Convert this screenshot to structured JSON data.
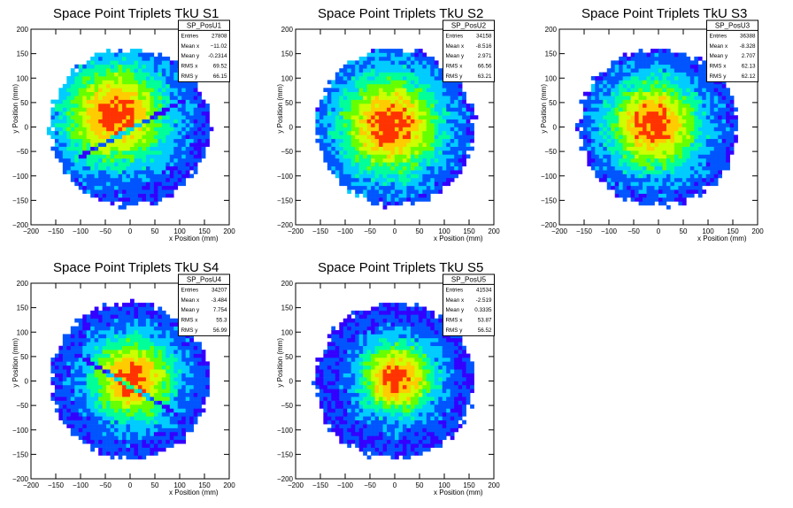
{
  "chart_data": [
    {
      "type": "heatmap",
      "title": "Space Point Triplets TkU S1",
      "xlabel": "x Position (mm)",
      "ylabel": "y Position (mm)",
      "xlim": [
        -200,
        200
      ],
      "ylim": [
        -200,
        200
      ],
      "xticks": [
        -200,
        -150,
        -100,
        -50,
        0,
        50,
        100,
        150,
        200
      ],
      "yticks": [
        -200,
        -150,
        -100,
        -50,
        0,
        50,
        100,
        150,
        200
      ],
      "stats": {
        "name": "SP_PosU1",
        "rows": [
          {
            "label": "Entries",
            "value": "27808"
          },
          {
            "label": "Mean x",
            "value": "−11.02"
          },
          {
            "label": "Mean y",
            "value": "-0.2314"
          },
          {
            "label": "RMS x",
            "value": "69.52"
          },
          {
            "label": "RMS y",
            "value": "66.15"
          }
        ]
      },
      "distribution": {
        "center": [
          -30,
          25
        ],
        "core_sigma": 55,
        "radius": 160,
        "gap_line": true,
        "gap_slope": 0.55,
        "gap_intercept": -5
      }
    },
    {
      "type": "heatmap",
      "title": "Space Point Triplets TkU S2",
      "xlabel": "x Position (mm)",
      "ylabel": "y Position (mm)",
      "xlim": [
        -200,
        200
      ],
      "ylim": [
        -200,
        200
      ],
      "xticks": [
        -200,
        -150,
        -100,
        -50,
        0,
        50,
        100,
        150,
        200
      ],
      "yticks": [
        -200,
        -150,
        -100,
        -50,
        0,
        50,
        100,
        150,
        200
      ],
      "stats": {
        "name": "SP_PosU2",
        "rows": [
          {
            "label": "Entries",
            "value": "34158"
          },
          {
            "label": "Mean x",
            "value": "-8.516"
          },
          {
            "label": "Mean y",
            "value": "2.971"
          },
          {
            "label": "RMS x",
            "value": "66.56"
          },
          {
            "label": "RMS y",
            "value": "63.21"
          }
        ]
      },
      "distribution": {
        "center": [
          -10,
          5
        ],
        "core_sigma": 55,
        "radius": 160,
        "gap_line": false
      }
    },
    {
      "type": "heatmap",
      "title": "Space Point Triplets TkU S3",
      "xlabel": "x Position (mm)",
      "ylabel": "y Position (mm)",
      "xlim": [
        -200,
        200
      ],
      "ylim": [
        -200,
        200
      ],
      "xticks": [
        -200,
        -150,
        -100,
        -50,
        0,
        50,
        100,
        150,
        200
      ],
      "yticks": [
        -200,
        -150,
        -100,
        -50,
        0,
        50,
        100,
        150,
        200
      ],
      "stats": {
        "name": "SP_PosU3",
        "rows": [
          {
            "label": "Entries",
            "value": "36388"
          },
          {
            "label": "Mean x",
            "value": "-8.328"
          },
          {
            "label": "Mean y",
            "value": "2.707"
          },
          {
            "label": "RMS x",
            "value": "62.13"
          },
          {
            "label": "RMS y",
            "value": "62.12"
          }
        ]
      },
      "distribution": {
        "center": [
          -10,
          5
        ],
        "core_sigma": 50,
        "radius": 160,
        "gap_line": false
      }
    },
    {
      "type": "heatmap",
      "title": "Space Point Triplets TkU S4",
      "xlabel": "x Position (mm)",
      "ylabel": "y Position (mm)",
      "xlim": [
        -200,
        200
      ],
      "ylim": [
        -200,
        200
      ],
      "xticks": [
        -200,
        -150,
        -100,
        -50,
        0,
        50,
        100,
        150,
        200
      ],
      "yticks": [
        -200,
        -150,
        -100,
        -50,
        0,
        50,
        100,
        150,
        200
      ],
      "stats": {
        "name": "SP_PosU4",
        "rows": [
          {
            "label": "Entries",
            "value": "34207"
          },
          {
            "label": "Mean x",
            "value": "-3.484"
          },
          {
            "label": "Mean y",
            "value": "7.754"
          },
          {
            "label": "RMS x",
            "value": "55.3"
          },
          {
            "label": "RMS y",
            "value": "56.99"
          }
        ]
      },
      "distribution": {
        "center": [
          5,
          5
        ],
        "core_sigma": 45,
        "radius": 160,
        "gap_line": true,
        "gap_slope": -0.6,
        "gap_intercept": -10
      }
    },
    {
      "type": "heatmap",
      "title": "Space Point Triplets TkU S5",
      "xlabel": "x Position (mm)",
      "ylabel": "y Position (mm)",
      "xlim": [
        -200,
        200
      ],
      "ylim": [
        -200,
        200
      ],
      "xticks": [
        -200,
        -150,
        -100,
        -50,
        0,
        50,
        100,
        150,
        200
      ],
      "yticks": [
        -200,
        -150,
        -100,
        -50,
        0,
        50,
        100,
        150,
        200
      ],
      "stats": {
        "name": "SP_PosU5",
        "rows": [
          {
            "label": "Entries",
            "value": "41534"
          },
          {
            "label": "Mean x",
            "value": "-2.519"
          },
          {
            "label": "Mean y",
            "value": "0.3335"
          },
          {
            "label": "RMS x",
            "value": "53.87"
          },
          {
            "label": "RMS y",
            "value": "56.52"
          }
        ]
      },
      "distribution": {
        "center": [
          5,
          5
        ],
        "core_sigma": 40,
        "radius": 160,
        "gap_line": false
      }
    }
  ],
  "colors": {
    "palette": [
      "#3300ff",
      "#0055ff",
      "#00ccff",
      "#00ff99",
      "#66ff00",
      "#ccff00",
      "#ffcc00",
      "#ff3300"
    ]
  }
}
